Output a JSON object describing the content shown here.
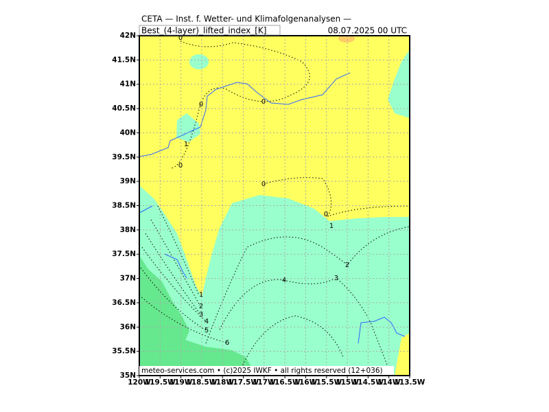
{
  "header": {
    "title": "CETA — Inst. f. Wetter- und Klimafolgenanalysen —",
    "field": "Best_(4-layer)_lifted_index_[K]",
    "valid_time": "08.07.2025 00 UTC"
  },
  "map": {
    "lat_labels": [
      "42N",
      "41.5N",
      "41N",
      "40.5N",
      "40N",
      "39.5N",
      "39N",
      "38.5N",
      "38N",
      "37.5N",
      "37N",
      "36.5N",
      "36N",
      "35.5N",
      "35N"
    ],
    "lon_labels": [
      "120W",
      "119.5W",
      "119W",
      "118.5W",
      "118W",
      "117.5W",
      "117W",
      "116.5W",
      "116W",
      "115.5W",
      "115W",
      "114.5W",
      "114W",
      "113.5W"
    ],
    "contour_labels": [
      "0",
      "0",
      "0",
      "1",
      "0",
      "0",
      "0",
      "1",
      "2",
      "3",
      "4",
      "1",
      "2",
      "3",
      "4",
      "5",
      "6"
    ]
  },
  "footer": "meteo-services.com • (c)2025 IWKF • all rights reserved (12+036)"
}
